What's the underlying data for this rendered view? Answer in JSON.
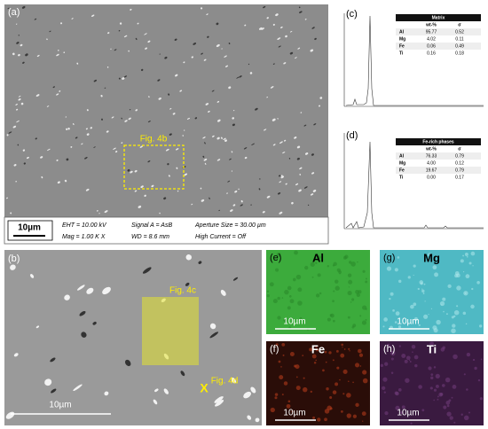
{
  "panels": {
    "a": {
      "label": "(a)",
      "scale_bar": "10µm",
      "callout": "Fig. 4b",
      "info": [
        "EHT = 10.00 kV",
        "Mag =  1.00 K X",
        "Signal A = AsB",
        "WD =  8.6 mm",
        "Aperture Size = 30.00 µm",
        "High Current = Off"
      ]
    },
    "b": {
      "label": "(b)",
      "scale_bar": "10µm",
      "callouts": [
        "Fig. 4c",
        "Fig. 4d"
      ],
      "marker": "X"
    },
    "c": {
      "label": "(c)",
      "table": {
        "title": "Matrix",
        "columns": [
          "wt-%",
          "σ"
        ],
        "rows": [
          [
            "Al",
            "95.77",
            "0.52"
          ],
          [
            "Mg",
            "4.02",
            "0.11"
          ],
          [
            "Fe",
            "0.06",
            "0.49"
          ],
          [
            "Ti",
            "0.16",
            "0.18"
          ]
        ]
      }
    },
    "d": {
      "label": "(d)",
      "table": {
        "title": "Fe-rich phases",
        "columns": [
          "wt-%",
          "σ"
        ],
        "rows": [
          [
            "Al",
            "76.33",
            "0.79"
          ],
          [
            "Mg",
            "4.00",
            "0.12"
          ],
          [
            "Fe",
            "19.67",
            "0.79"
          ],
          [
            "Ti",
            "0.00",
            "0.17"
          ]
        ]
      }
    },
    "e": {
      "label": "(e)",
      "element": "Al",
      "scale_bar": "10µm"
    },
    "g": {
      "label": "(g)",
      "element": "Mg",
      "scale_bar": "10µm"
    },
    "f": {
      "label": "(f)",
      "element": "Fe",
      "scale_bar": "10µm"
    },
    "h": {
      "label": "(h)",
      "element": "Ti",
      "scale_bar": "10µm"
    }
  }
}
